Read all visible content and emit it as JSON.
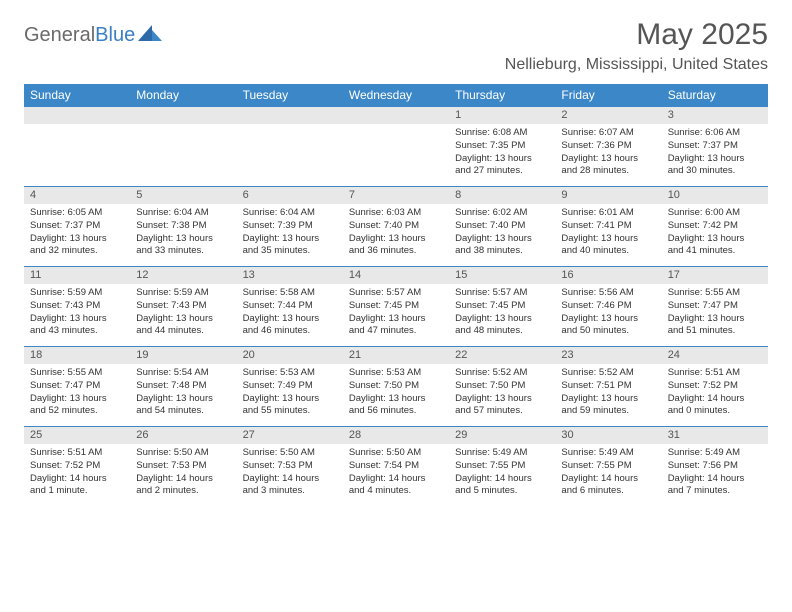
{
  "brand": {
    "part1": "General",
    "part2": "Blue"
  },
  "title": "May 2025",
  "location": "Nellieburg, Mississippi, United States",
  "colors": {
    "header_bg": "#3b87c8",
    "header_text": "#ffffff",
    "daynum_bg": "#e8e8e8",
    "text": "#333333",
    "title_text": "#555555"
  },
  "day_headers": [
    "Sunday",
    "Monday",
    "Tuesday",
    "Wednesday",
    "Thursday",
    "Friday",
    "Saturday"
  ],
  "weeks": [
    [
      {
        "n": "",
        "sr": "",
        "ss": "",
        "dl": ""
      },
      {
        "n": "",
        "sr": "",
        "ss": "",
        "dl": ""
      },
      {
        "n": "",
        "sr": "",
        "ss": "",
        "dl": ""
      },
      {
        "n": "",
        "sr": "",
        "ss": "",
        "dl": ""
      },
      {
        "n": "1",
        "sr": "Sunrise: 6:08 AM",
        "ss": "Sunset: 7:35 PM",
        "dl": "Daylight: 13 hours and 27 minutes."
      },
      {
        "n": "2",
        "sr": "Sunrise: 6:07 AM",
        "ss": "Sunset: 7:36 PM",
        "dl": "Daylight: 13 hours and 28 minutes."
      },
      {
        "n": "3",
        "sr": "Sunrise: 6:06 AM",
        "ss": "Sunset: 7:37 PM",
        "dl": "Daylight: 13 hours and 30 minutes."
      }
    ],
    [
      {
        "n": "4",
        "sr": "Sunrise: 6:05 AM",
        "ss": "Sunset: 7:37 PM",
        "dl": "Daylight: 13 hours and 32 minutes."
      },
      {
        "n": "5",
        "sr": "Sunrise: 6:04 AM",
        "ss": "Sunset: 7:38 PM",
        "dl": "Daylight: 13 hours and 33 minutes."
      },
      {
        "n": "6",
        "sr": "Sunrise: 6:04 AM",
        "ss": "Sunset: 7:39 PM",
        "dl": "Daylight: 13 hours and 35 minutes."
      },
      {
        "n": "7",
        "sr": "Sunrise: 6:03 AM",
        "ss": "Sunset: 7:40 PM",
        "dl": "Daylight: 13 hours and 36 minutes."
      },
      {
        "n": "8",
        "sr": "Sunrise: 6:02 AM",
        "ss": "Sunset: 7:40 PM",
        "dl": "Daylight: 13 hours and 38 minutes."
      },
      {
        "n": "9",
        "sr": "Sunrise: 6:01 AM",
        "ss": "Sunset: 7:41 PM",
        "dl": "Daylight: 13 hours and 40 minutes."
      },
      {
        "n": "10",
        "sr": "Sunrise: 6:00 AM",
        "ss": "Sunset: 7:42 PM",
        "dl": "Daylight: 13 hours and 41 minutes."
      }
    ],
    [
      {
        "n": "11",
        "sr": "Sunrise: 5:59 AM",
        "ss": "Sunset: 7:43 PM",
        "dl": "Daylight: 13 hours and 43 minutes."
      },
      {
        "n": "12",
        "sr": "Sunrise: 5:59 AM",
        "ss": "Sunset: 7:43 PM",
        "dl": "Daylight: 13 hours and 44 minutes."
      },
      {
        "n": "13",
        "sr": "Sunrise: 5:58 AM",
        "ss": "Sunset: 7:44 PM",
        "dl": "Daylight: 13 hours and 46 minutes."
      },
      {
        "n": "14",
        "sr": "Sunrise: 5:57 AM",
        "ss": "Sunset: 7:45 PM",
        "dl": "Daylight: 13 hours and 47 minutes."
      },
      {
        "n": "15",
        "sr": "Sunrise: 5:57 AM",
        "ss": "Sunset: 7:45 PM",
        "dl": "Daylight: 13 hours and 48 minutes."
      },
      {
        "n": "16",
        "sr": "Sunrise: 5:56 AM",
        "ss": "Sunset: 7:46 PM",
        "dl": "Daylight: 13 hours and 50 minutes."
      },
      {
        "n": "17",
        "sr": "Sunrise: 5:55 AM",
        "ss": "Sunset: 7:47 PM",
        "dl": "Daylight: 13 hours and 51 minutes."
      }
    ],
    [
      {
        "n": "18",
        "sr": "Sunrise: 5:55 AM",
        "ss": "Sunset: 7:47 PM",
        "dl": "Daylight: 13 hours and 52 minutes."
      },
      {
        "n": "19",
        "sr": "Sunrise: 5:54 AM",
        "ss": "Sunset: 7:48 PM",
        "dl": "Daylight: 13 hours and 54 minutes."
      },
      {
        "n": "20",
        "sr": "Sunrise: 5:53 AM",
        "ss": "Sunset: 7:49 PM",
        "dl": "Daylight: 13 hours and 55 minutes."
      },
      {
        "n": "21",
        "sr": "Sunrise: 5:53 AM",
        "ss": "Sunset: 7:50 PM",
        "dl": "Daylight: 13 hours and 56 minutes."
      },
      {
        "n": "22",
        "sr": "Sunrise: 5:52 AM",
        "ss": "Sunset: 7:50 PM",
        "dl": "Daylight: 13 hours and 57 minutes."
      },
      {
        "n": "23",
        "sr": "Sunrise: 5:52 AM",
        "ss": "Sunset: 7:51 PM",
        "dl": "Daylight: 13 hours and 59 minutes."
      },
      {
        "n": "24",
        "sr": "Sunrise: 5:51 AM",
        "ss": "Sunset: 7:52 PM",
        "dl": "Daylight: 14 hours and 0 minutes."
      }
    ],
    [
      {
        "n": "25",
        "sr": "Sunrise: 5:51 AM",
        "ss": "Sunset: 7:52 PM",
        "dl": "Daylight: 14 hours and 1 minute."
      },
      {
        "n": "26",
        "sr": "Sunrise: 5:50 AM",
        "ss": "Sunset: 7:53 PM",
        "dl": "Daylight: 14 hours and 2 minutes."
      },
      {
        "n": "27",
        "sr": "Sunrise: 5:50 AM",
        "ss": "Sunset: 7:53 PM",
        "dl": "Daylight: 14 hours and 3 minutes."
      },
      {
        "n": "28",
        "sr": "Sunrise: 5:50 AM",
        "ss": "Sunset: 7:54 PM",
        "dl": "Daylight: 14 hours and 4 minutes."
      },
      {
        "n": "29",
        "sr": "Sunrise: 5:49 AM",
        "ss": "Sunset: 7:55 PM",
        "dl": "Daylight: 14 hours and 5 minutes."
      },
      {
        "n": "30",
        "sr": "Sunrise: 5:49 AM",
        "ss": "Sunset: 7:55 PM",
        "dl": "Daylight: 14 hours and 6 minutes."
      },
      {
        "n": "31",
        "sr": "Sunrise: 5:49 AM",
        "ss": "Sunset: 7:56 PM",
        "dl": "Daylight: 14 hours and 7 minutes."
      }
    ]
  ]
}
